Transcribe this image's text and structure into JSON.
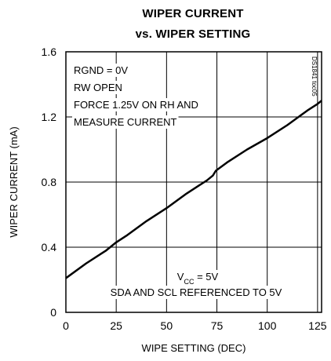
{
  "chart_data": {
    "type": "line",
    "title_lines": [
      "WIPER CURRENT",
      "vs. WIPER SETTING"
    ],
    "xlabel": "WIPE SETTING (DEC)",
    "ylabel": "WIPER CURRENT (mA)",
    "xlim": [
      0,
      127
    ],
    "ylim": [
      0,
      1.6
    ],
    "x_ticks": [
      0,
      25,
      50,
      75,
      100,
      125
    ],
    "x_tick_labels": [
      "0",
      "25",
      "50",
      "75",
      "100",
      "125"
    ],
    "y_ticks": [
      0,
      0.4,
      0.8,
      1.2,
      1.6
    ],
    "y_tick_labels": [
      "0",
      "0.4",
      "0.8",
      "1.2",
      "1.6"
    ],
    "grid": true,
    "series": [
      {
        "x": [
          0,
          10,
          20,
          25,
          30,
          40,
          50,
          60,
          70,
          73,
          73.5,
          74,
          74.5,
          80,
          90,
          100,
          110,
          120,
          125,
          127
        ],
        "y": [
          0.21,
          0.3,
          0.38,
          0.43,
          0.47,
          0.56,
          0.64,
          0.73,
          0.81,
          0.84,
          0.85,
          0.86,
          0.87,
          0.92,
          1.0,
          1.07,
          1.15,
          1.24,
          1.28,
          1.3
        ]
      }
    ],
    "annotations": {
      "conditions": [
        "RGND = 0V",
        "RW OPEN",
        "FORCE 1.25V ON RH AND",
        "MEASURE CURRENT"
      ],
      "vcc_prefix": "V",
      "vcc_subscript": "CC",
      "vcc_suffix": " = 5V",
      "sda_note": "SDA AND SCL REFERENCED TO 5V",
      "figure_code": "DS1841 toc05"
    }
  }
}
